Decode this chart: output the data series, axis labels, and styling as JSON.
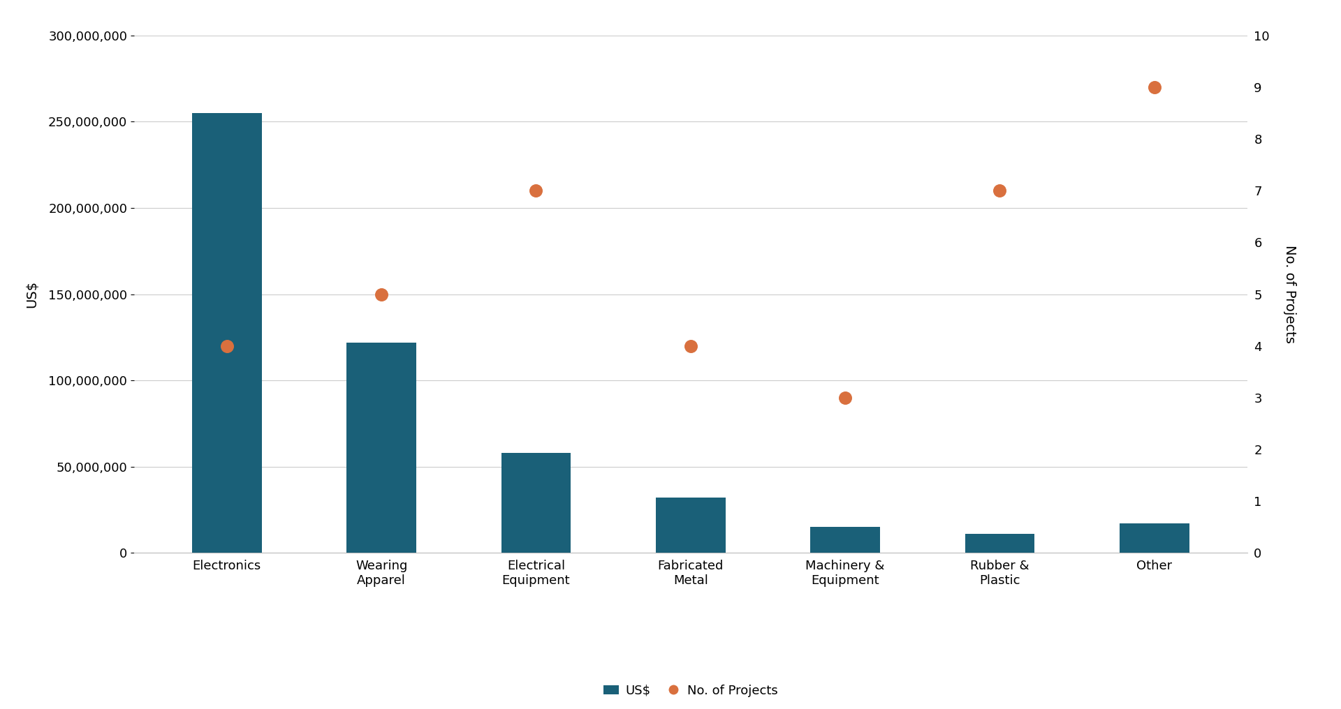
{
  "categories": [
    "Electronics",
    "Wearing\nApparel",
    "Electrical\nEquipment",
    "Fabricated\nMetal",
    "Machinery &\nEquipment",
    "Rubber &\nPlastic",
    "Other"
  ],
  "usd_values": [
    255000000,
    122000000,
    58000000,
    32000000,
    15000000,
    11000000,
    17000000
  ],
  "project_counts": [
    4,
    5,
    7,
    4,
    3,
    7,
    9
  ],
  "bar_color": "#1a6078",
  "dot_color": "#d9703e",
  "bar_label": "US$",
  "dot_label": "No. of Projects",
  "ylabel_left": "US$",
  "ylabel_right": "No. of Projects",
  "ylim_left": [
    0,
    300000000
  ],
  "ylim_right": [
    0,
    10
  ],
  "yticks_left": [
    0,
    50000000,
    100000000,
    150000000,
    200000000,
    250000000,
    300000000
  ],
  "yticks_right": [
    0,
    1,
    2,
    3,
    4,
    5,
    6,
    7,
    8,
    9,
    10
  ],
  "background_color": "#ffffff",
  "grid_color": "#cccccc",
  "axis_fontsize": 14,
  "tick_fontsize": 13,
  "legend_fontsize": 13,
  "bar_width": 0.45
}
